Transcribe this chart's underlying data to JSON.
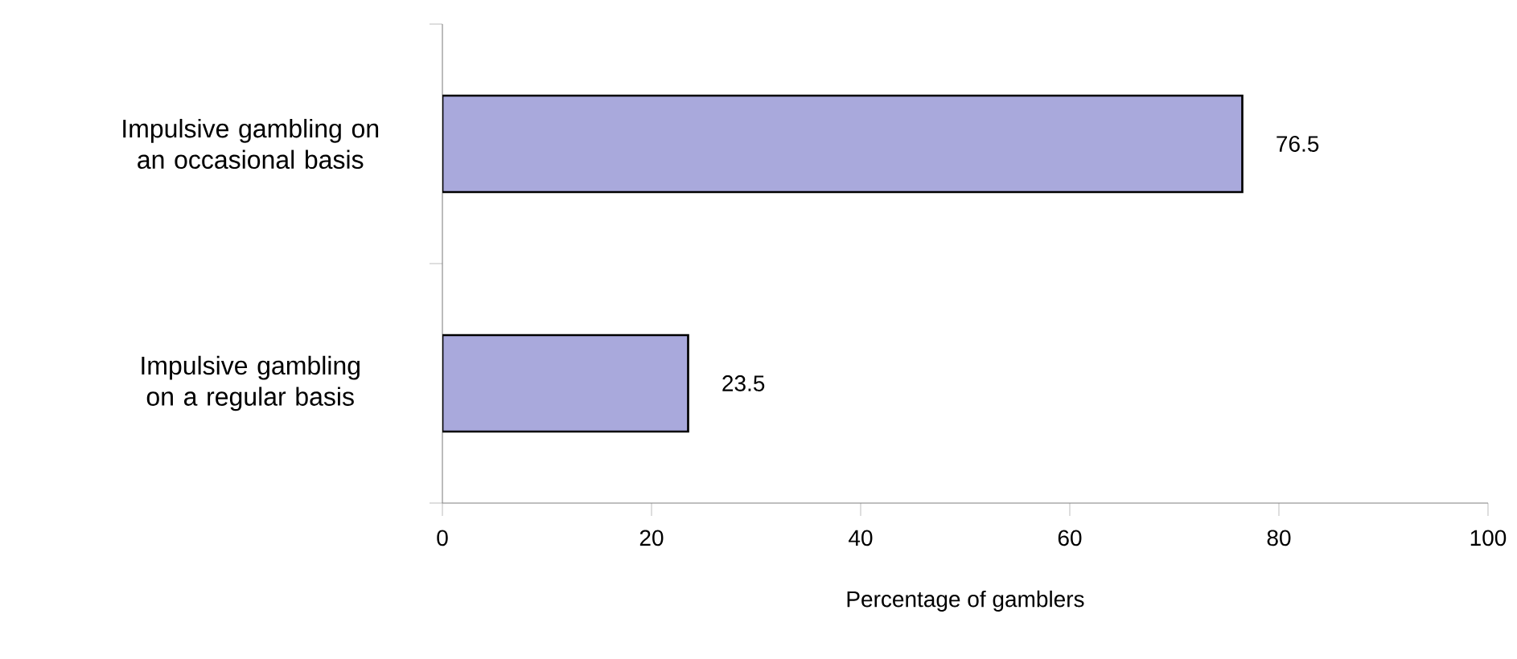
{
  "chart_data": {
    "type": "bar",
    "orientation": "horizontal",
    "xlabel": "Percentage of gamblers",
    "categories": [
      "Impulsive gambling on an occasional basis",
      "Impulsive gambling on a regular basis"
    ],
    "values": [
      76.5,
      23.5
    ],
    "color": "#a9a9dc",
    "data_labels": true,
    "xlim": [
      0,
      100
    ],
    "xticks": [
      0,
      20,
      40,
      60,
      80,
      100
    ],
    "grid": false
  }
}
